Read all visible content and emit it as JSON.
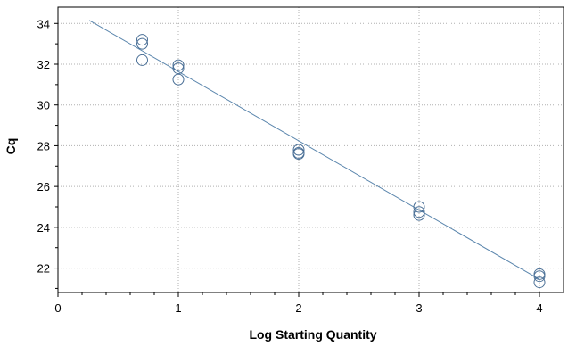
{
  "chart_data": {
    "type": "scatter",
    "xlabel": "Log Starting Quantity",
    "ylabel": "Cq",
    "xlim": [
      0,
      4.2
    ],
    "ylim": [
      20.8,
      34.8
    ],
    "x_ticks": [
      0,
      1,
      2,
      3,
      4
    ],
    "y_ticks": [
      22,
      24,
      26,
      28,
      30,
      32,
      34
    ],
    "x_tick_labels": [
      "0",
      "1",
      "2",
      "3",
      "4"
    ],
    "y_tick_labels": [
      "22",
      "24",
      "26",
      "28",
      "30",
      "32",
      "34"
    ],
    "grid": true,
    "legend": false,
    "colors": {
      "points": "#4a6f96",
      "fit_line": "#5b86ad",
      "grid": "#b0b0b0",
      "axis": "#000000"
    },
    "points": [
      {
        "x": 0.7,
        "y": 33.2
      },
      {
        "x": 0.7,
        "y": 33.0
      },
      {
        "x": 0.7,
        "y": 32.2
      },
      {
        "x": 1.0,
        "y": 31.95
      },
      {
        "x": 1.0,
        "y": 31.8
      },
      {
        "x": 1.0,
        "y": 31.25
      },
      {
        "x": 2.0,
        "y": 27.8
      },
      {
        "x": 2.0,
        "y": 27.65
      },
      {
        "x": 2.0,
        "y": 27.6
      },
      {
        "x": 3.0,
        "y": 25.0
      },
      {
        "x": 3.0,
        "y": 24.75
      },
      {
        "x": 3.0,
        "y": 24.6
      },
      {
        "x": 4.0,
        "y": 21.7
      },
      {
        "x": 4.0,
        "y": 21.6
      },
      {
        "x": 4.0,
        "y": 21.3
      }
    ],
    "fit_line": {
      "x": [
        0.26,
        4.0
      ],
      "y": [
        34.15,
        21.45
      ]
    }
  }
}
